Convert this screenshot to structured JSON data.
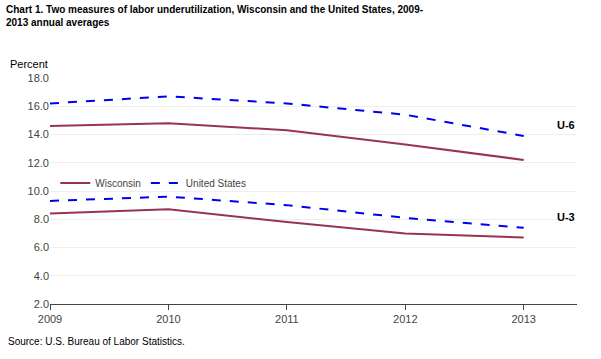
{
  "chart_data": {
    "type": "line",
    "title": [
      "Chart 1. Two measures of labor underutilization, Wisconsin and the United States, 2009-",
      "2013 annual averages"
    ],
    "ylabel": "Percent",
    "source": "Source: U.S. Bureau of Labor Statistics.",
    "x": [
      2009,
      2010,
      2011,
      2012,
      2013
    ],
    "series": [
      {
        "name": "Wisconsin",
        "color": "#993355",
        "line_style": "solid",
        "values": [
          14.6,
          14.8,
          14.3,
          13.3,
          12.2
        ]
      },
      {
        "name": "United States",
        "color": "#0000ee",
        "line_style": "dashed",
        "values": [
          16.2,
          16.7,
          16.2,
          15.4,
          13.9
        ]
      },
      {
        "name": "Wisconsin",
        "color": "#993355",
        "line_style": "solid",
        "values": [
          8.4,
          8.7,
          7.8,
          7.0,
          6.7
        ]
      },
      {
        "name": "United States",
        "color": "#0000ee",
        "line_style": "dashed",
        "values": [
          9.3,
          9.6,
          9.0,
          8.1,
          7.4
        ]
      }
    ],
    "annotations": [
      {
        "text": "U-6"
      },
      {
        "text": "U-3"
      }
    ],
    "xlim": [
      2009,
      2013.45
    ],
    "xticks": [
      2009,
      2010,
      2011,
      2012,
      2013
    ],
    "ylim": [
      2,
      18
    ],
    "yticks": [
      {
        "value": 2,
        "label": "2.0"
      },
      {
        "value": 4,
        "label": "4.0"
      },
      {
        "value": 6,
        "label": "6.0"
      },
      {
        "value": 8,
        "label": "8.0"
      },
      {
        "value": 10,
        "label": "10.0"
      },
      {
        "value": 12,
        "label": "12.0"
      },
      {
        "value": 14,
        "label": "14.0"
      },
      {
        "value": 16,
        "label": "16.0"
      },
      {
        "value": 18,
        "label": "18.0"
      }
    ],
    "grid": true,
    "legend": "upper left"
  }
}
